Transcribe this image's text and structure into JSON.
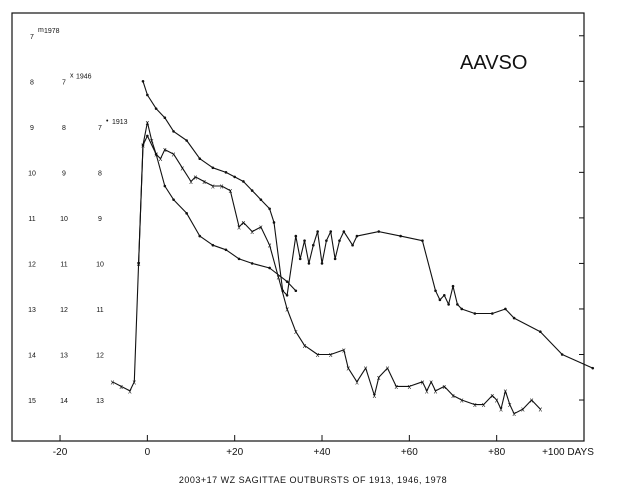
{
  "brand": "AAVSO",
  "caption": "2003+17 WZ SAGITTAE OUTBURSTS OF 1913, 1946, 1978",
  "chart_data": {
    "type": "line",
    "title": "",
    "xlabel": "DAYS",
    "ylabel": "",
    "xlim": [
      -31,
      100
    ],
    "ylim": [
      15.9,
      6.5
    ],
    "x_ticks": [
      -20,
      0,
      20,
      40,
      60,
      80,
      100
    ],
    "x_tick_labels": [
      "-20",
      "0",
      "+20",
      "+40",
      "+60",
      "+80",
      "+100 DAYS"
    ],
    "mag_columns": [
      {
        "year": "1978",
        "labels": [
          "7",
          "8",
          "9",
          "10",
          "11",
          "12",
          "13",
          "14",
          "15"
        ],
        "values": [
          7,
          8,
          9,
          10,
          11,
          12,
          13,
          14,
          15
        ]
      },
      {
        "year": "1946",
        "labels": [
          "7",
          "8",
          "9",
          "10",
          "11",
          "12",
          "13",
          "14"
        ],
        "values": [
          8,
          9,
          10,
          11,
          12,
          13,
          14,
          15
        ]
      },
      {
        "year": "1913",
        "labels": [
          "7",
          "8",
          "9",
          "10",
          "11",
          "12",
          "13"
        ],
        "values": [
          9,
          10,
          11,
          12,
          13,
          14,
          15
        ]
      }
    ],
    "year_markers": {
      "1978": "m",
      "1946": "x",
      "1913": "•"
    },
    "series": [
      {
        "marker": "dot",
        "points": [
          [
            -1,
            8.0
          ],
          [
            0,
            8.3
          ],
          [
            2,
            8.6
          ],
          [
            4,
            8.8
          ],
          [
            6,
            9.1
          ],
          [
            9,
            9.3
          ],
          [
            12,
            9.7
          ],
          [
            15,
            9.9
          ],
          [
            18,
            10.0
          ],
          [
            20,
            10.1
          ],
          [
            22,
            10.2
          ],
          [
            24,
            10.4
          ],
          [
            26,
            10.6
          ],
          [
            28,
            10.8
          ],
          [
            29,
            11.1
          ],
          [
            31,
            12.6
          ],
          [
            32,
            12.7
          ],
          [
            34,
            11.4
          ],
          [
            35,
            11.9
          ],
          [
            36,
            11.5
          ],
          [
            37,
            12.0
          ],
          [
            38,
            11.6
          ],
          [
            39,
            11.3
          ],
          [
            40,
            12.0
          ],
          [
            41,
            11.5
          ],
          [
            42,
            11.3
          ],
          [
            43,
            11.9
          ],
          [
            44,
            11.5
          ],
          [
            45,
            11.3
          ],
          [
            47,
            11.6
          ],
          [
            48,
            11.4
          ],
          [
            53,
            11.3
          ],
          [
            58,
            11.4
          ],
          [
            63,
            11.5
          ],
          [
            66,
            12.6
          ],
          [
            67,
            12.8
          ],
          [
            68,
            12.7
          ],
          [
            69,
            12.9
          ],
          [
            70,
            12.5
          ],
          [
            71,
            12.9
          ],
          [
            72,
            13.0
          ],
          [
            75,
            13.1
          ],
          [
            79,
            13.1
          ],
          [
            82,
            13.0
          ],
          [
            84,
            13.2
          ],
          [
            90,
            13.5
          ],
          [
            95,
            14.0
          ],
          [
            102,
            14.3
          ]
        ]
      },
      {
        "marker": "x",
        "points": [
          [
            -8,
            14.6
          ],
          [
            -6,
            14.7
          ],
          [
            -4,
            14.8
          ],
          [
            -3,
            14.6
          ],
          [
            -2,
            12.0
          ],
          [
            -1,
            9.4
          ],
          [
            0,
            8.9
          ],
          [
            1,
            9.3
          ],
          [
            2,
            9.6
          ],
          [
            3,
            9.7
          ],
          [
            4,
            9.5
          ],
          [
            6,
            9.6
          ],
          [
            8,
            9.9
          ],
          [
            10,
            10.2
          ],
          [
            11,
            10.1
          ],
          [
            13,
            10.2
          ],
          [
            15,
            10.3
          ],
          [
            17,
            10.3
          ],
          [
            19,
            10.4
          ],
          [
            21,
            11.2
          ],
          [
            22,
            11.1
          ],
          [
            24,
            11.3
          ],
          [
            26,
            11.2
          ],
          [
            28,
            11.6
          ],
          [
            30,
            12.3
          ],
          [
            32,
            13.0
          ],
          [
            34,
            13.5
          ],
          [
            36,
            13.8
          ],
          [
            39,
            14.0
          ],
          [
            42,
            14.0
          ],
          [
            45,
            13.9
          ],
          [
            46,
            14.3
          ],
          [
            48,
            14.6
          ],
          [
            50,
            14.3
          ],
          [
            52,
            14.9
          ],
          [
            53,
            14.5
          ],
          [
            55,
            14.3
          ],
          [
            57,
            14.7
          ],
          [
            60,
            14.7
          ],
          [
            63,
            14.6
          ],
          [
            64,
            14.8
          ],
          [
            65,
            14.6
          ],
          [
            66,
            14.8
          ],
          [
            68,
            14.7
          ],
          [
            70,
            14.9
          ],
          [
            72,
            15.0
          ],
          [
            75,
            15.1
          ],
          [
            77,
            15.1
          ],
          [
            79,
            14.9
          ],
          [
            80,
            15.0
          ],
          [
            81,
            15.2
          ],
          [
            82,
            14.8
          ],
          [
            83,
            15.1
          ],
          [
            84,
            15.3
          ],
          [
            86,
            15.2
          ],
          [
            88,
            15.0
          ],
          [
            90,
            15.2
          ]
        ]
      },
      {
        "marker": "dot",
        "points": [
          [
            -2,
            12.0
          ],
          [
            -1,
            9.4
          ],
          [
            0,
            9.2
          ],
          [
            2,
            9.6
          ],
          [
            4,
            10.3
          ],
          [
            6,
            10.6
          ],
          [
            9,
            10.9
          ],
          [
            12,
            11.4
          ],
          [
            15,
            11.6
          ],
          [
            18,
            11.7
          ],
          [
            21,
            11.9
          ],
          [
            24,
            12.0
          ],
          [
            28,
            12.1
          ],
          [
            32,
            12.4
          ],
          [
            34,
            12.6
          ]
        ]
      }
    ],
    "grid": false,
    "legend": "none"
  }
}
